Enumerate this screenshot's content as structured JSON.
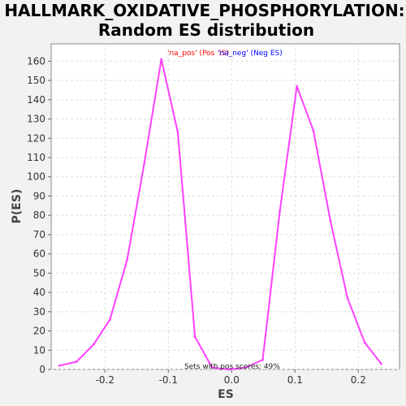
{
  "chart_data": {
    "type": "line",
    "title": "HALLMARK_OXIDATIVE_PHOSPHORYLATION:",
    "subtitle": "Random ES distribution",
    "xlabel": "ES",
    "ylabel": "P(ES)",
    "xlim": [
      -0.285,
      0.265
    ],
    "ylim": [
      0,
      169
    ],
    "xticks": [
      -0.2,
      -0.1,
      0.0,
      0.1,
      0.2
    ],
    "xtick_labels": [
      "-0.2",
      "-0.1",
      "0.0",
      "0.1",
      "0.2"
    ],
    "yticks": [
      0,
      10,
      20,
      30,
      40,
      50,
      60,
      70,
      80,
      90,
      100,
      110,
      120,
      130,
      140,
      150,
      160
    ],
    "grid": true,
    "series": [
      {
        "name": "'na_pos' (Pos ES)",
        "color": "#ff0000",
        "x": [],
        "y": []
      },
      {
        "name": "'na_neg' (Neg ES)",
        "color": "#0000ff",
        "x": [],
        "y": []
      },
      {
        "name": "",
        "color": "#ff40ff",
        "x": [
          -0.272,
          -0.245,
          -0.218,
          -0.192,
          -0.165,
          -0.138,
          -0.111,
          -0.085,
          -0.058,
          -0.031,
          -0.004,
          0.022,
          0.049,
          0.076,
          0.103,
          0.129,
          0.156,
          0.183,
          0.21,
          0.236
        ],
        "y": [
          2,
          4,
          13,
          26,
          57,
          107,
          161,
          123,
          17,
          1,
          0,
          1,
          5,
          82,
          147,
          124,
          77,
          37,
          14,
          3
        ]
      }
    ],
    "legend_position": "top-center",
    "annotation": "Sets with pos scores: 49%"
  }
}
